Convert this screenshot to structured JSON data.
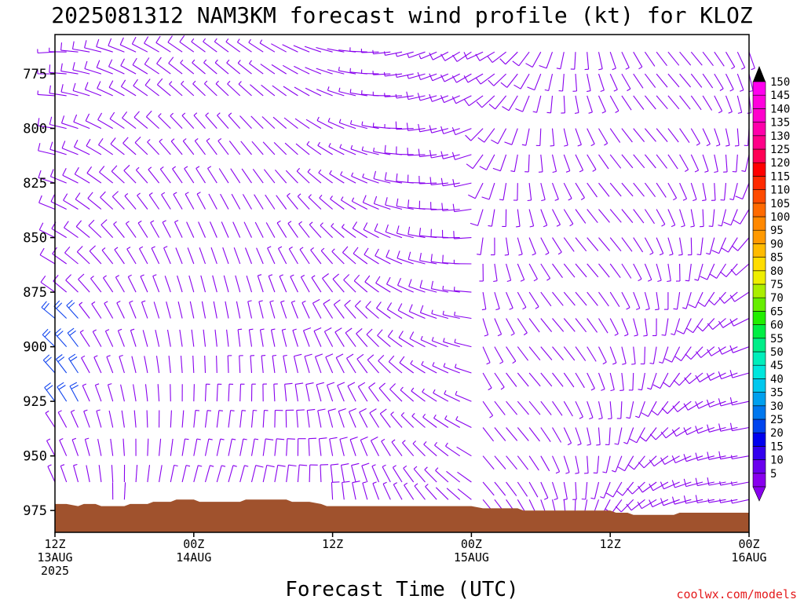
{
  "chart_data": {
    "type": "wind-barb time-height",
    "title": "2025081312 NAM3KM forecast wind profile (kt) for KLOZ",
    "xlabel": "Forecast Time (UTC)",
    "credit": "coolwx.com/models",
    "y_ticks": [
      "775",
      "800",
      "825",
      "850",
      "875",
      "900",
      "925",
      "950",
      "975"
    ],
    "y_tick_values": [
      775,
      800,
      825,
      850,
      875,
      900,
      925,
      950,
      975
    ],
    "ylim": [
      985,
      757
    ],
    "xlim_hours": [
      0,
      60
    ],
    "x_ticks": [
      {
        "hour": 0,
        "lines": [
          "12Z",
          "13AUG",
          "2025"
        ]
      },
      {
        "hour": 12,
        "lines": [
          "00Z",
          "14AUG"
        ]
      },
      {
        "hour": 24,
        "lines": [
          "12Z"
        ]
      },
      {
        "hour": 36,
        "lines": [
          "00Z",
          "15AUG"
        ]
      },
      {
        "hour": 48,
        "lines": [
          "12Z"
        ]
      },
      {
        "hour": 60,
        "lines": [
          "00Z",
          "16AUG"
        ]
      }
    ],
    "colorbar_values": [
      "5",
      "10",
      "15",
      "20",
      "25",
      "30",
      "35",
      "40",
      "45",
      "50",
      "55",
      "60",
      "65",
      "70",
      "75",
      "80",
      "85",
      "90",
      "95",
      "100",
      "105",
      "110",
      "115",
      "120",
      "125",
      "130",
      "135",
      "140",
      "145",
      "150"
    ],
    "colorbar_colors": [
      "#8800ee",
      "#6a00ee",
      "#3300ee",
      "#0000ee",
      "#0044ee",
      "#0077ee",
      "#00a0ee",
      "#00c8ee",
      "#00e6dd",
      "#00eebb",
      "#00ee88",
      "#00ee44",
      "#22ee00",
      "#66ee00",
      "#aaee00",
      "#eeee00",
      "#ffdd00",
      "#ffbb00",
      "#ff9900",
      "#ff8800",
      "#ff6a00",
      "#ff4a00",
      "#ff2a00",
      "#ff0000",
      "#ff0055",
      "#ff0088",
      "#ff00aa",
      "#ff00cc",
      "#ff00dd",
      "#ff00ee"
    ],
    "terrain_color": "#a0522d",
    "terrain_surface_hpa": [
      [
        0,
        972
      ],
      [
        1,
        972
      ],
      [
        2,
        973
      ],
      [
        2.5,
        972
      ],
      [
        3.5,
        972
      ],
      [
        4,
        973
      ],
      [
        6,
        973
      ],
      [
        6.5,
        972
      ],
      [
        8,
        972
      ],
      [
        8.5,
        971
      ],
      [
        10,
        971
      ],
      [
        10.5,
        970
      ],
      [
        11,
        970
      ],
      [
        12,
        970
      ],
      [
        12.5,
        971
      ],
      [
        16,
        971
      ],
      [
        16.5,
        970
      ],
      [
        20,
        970
      ],
      [
        20.5,
        971
      ],
      [
        22,
        971
      ],
      [
        23,
        972
      ],
      [
        23.5,
        973
      ],
      [
        36,
        973
      ],
      [
        37,
        974
      ],
      [
        40,
        974
      ],
      [
        40.5,
        975
      ],
      [
        48,
        975
      ],
      [
        48.5,
        976
      ],
      [
        49.5,
        976
      ],
      [
        50,
        977
      ],
      [
        53.5,
        977
      ],
      [
        54,
        976
      ],
      [
        60,
        976
      ]
    ],
    "barb_color": "#8800ee",
    "levels_hpa_sample": [
      765,
      775,
      785,
      800,
      812,
      825,
      837,
      850,
      862,
      875,
      887,
      900,
      912,
      925,
      937,
      950,
      962,
      970
    ],
    "wind_notes": "Wind barbs (kt) drawn at every forecast hour for pressure levels from the surface to about 760 hPa; speeds mostly 5-15 kt, locally 15-25 kt near 900-925 hPa at the start of the period."
  }
}
